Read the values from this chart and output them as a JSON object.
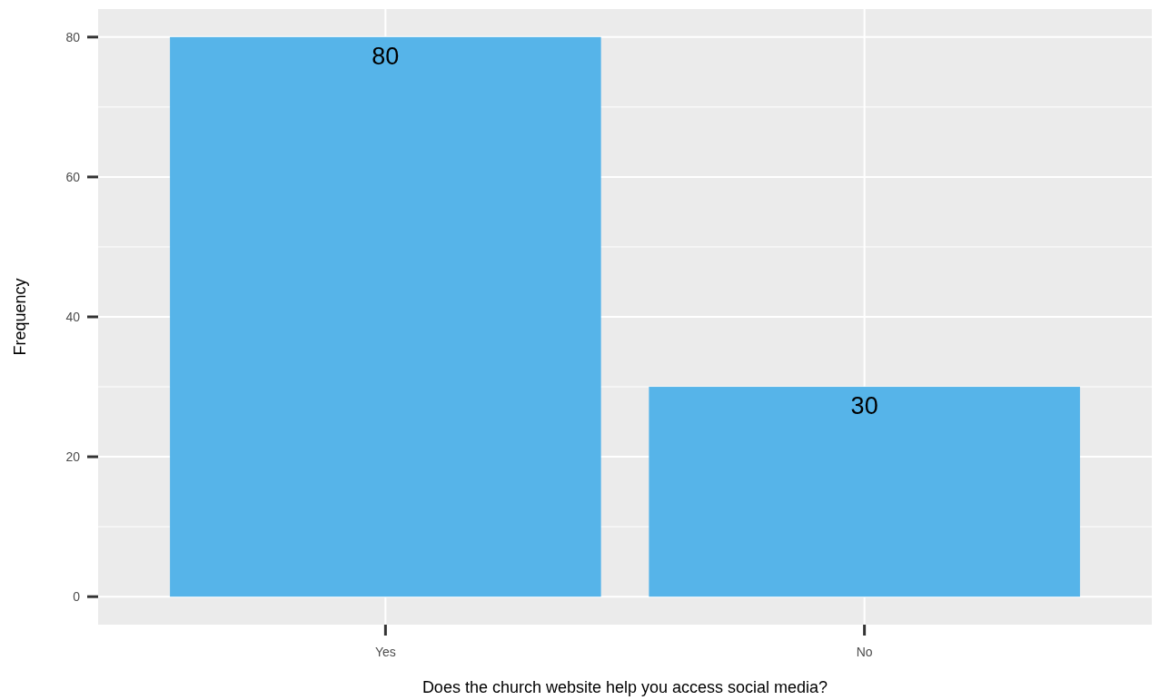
{
  "chart_data": {
    "type": "bar",
    "xlabel": "Does the church website help you access social media?",
    "ylabel": "Frequency",
    "categories": [
      "Yes",
      "No"
    ],
    "values": [
      80,
      30
    ],
    "color": "#56b4e9",
    "ylim": [
      -4,
      84
    ],
    "yticks": [
      0,
      20,
      40,
      60,
      80
    ],
    "grid": true,
    "data_labels": true
  }
}
